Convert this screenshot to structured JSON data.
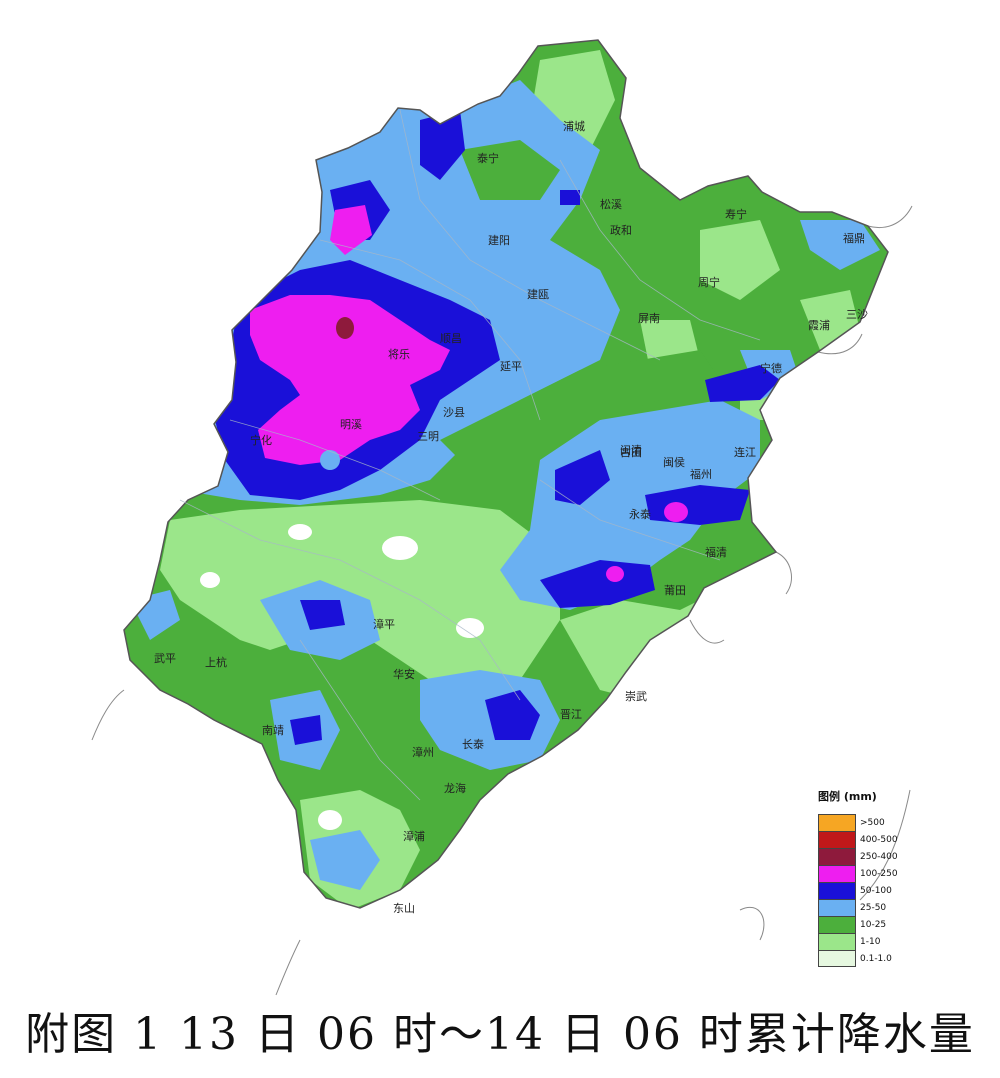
{
  "caption": "附图 1   13 日 06 时～14 日 06 时累计降水量",
  "legend": {
    "title": "图例 (mm)",
    "items": [
      {
        "label": ">500",
        "color": "#f6a623"
      },
      {
        "label": "400-500",
        "color": "#c0181a"
      },
      {
        "label": "250-400",
        "color": "#8e1a3c"
      },
      {
        "label": "100-250",
        "color": "#ee1ef0"
      },
      {
        "label": "50-100",
        "color": "#1a10d8"
      },
      {
        "label": "25-50",
        "color": "#6ab0f2"
      },
      {
        "label": "10-25",
        "color": "#4caf3c"
      },
      {
        "label": "1-10",
        "color": "#9be68a"
      },
      {
        "label": "0.1-1.0",
        "color": "#e6f8e0"
      }
    ]
  },
  "places": [
    "浦城",
    "泰宁",
    "松溪",
    "政和",
    "寿宁",
    "福鼎",
    "建阳",
    "建瓯",
    "周宁",
    "屏南",
    "霞浦",
    "三沙",
    "将乐",
    "顺昌",
    "延平",
    "明溪",
    "沙县",
    "三明",
    "宁化",
    "古田",
    "宁德",
    "闽清",
    "闽侯",
    "福州",
    "连江",
    "永泰",
    "福清",
    "莆田",
    "武平",
    "上杭",
    "漳平",
    "华安",
    "崇武",
    "晋江",
    "南靖",
    "长泰",
    "漳州",
    "龙海",
    "漳浦",
    "东山"
  ]
}
